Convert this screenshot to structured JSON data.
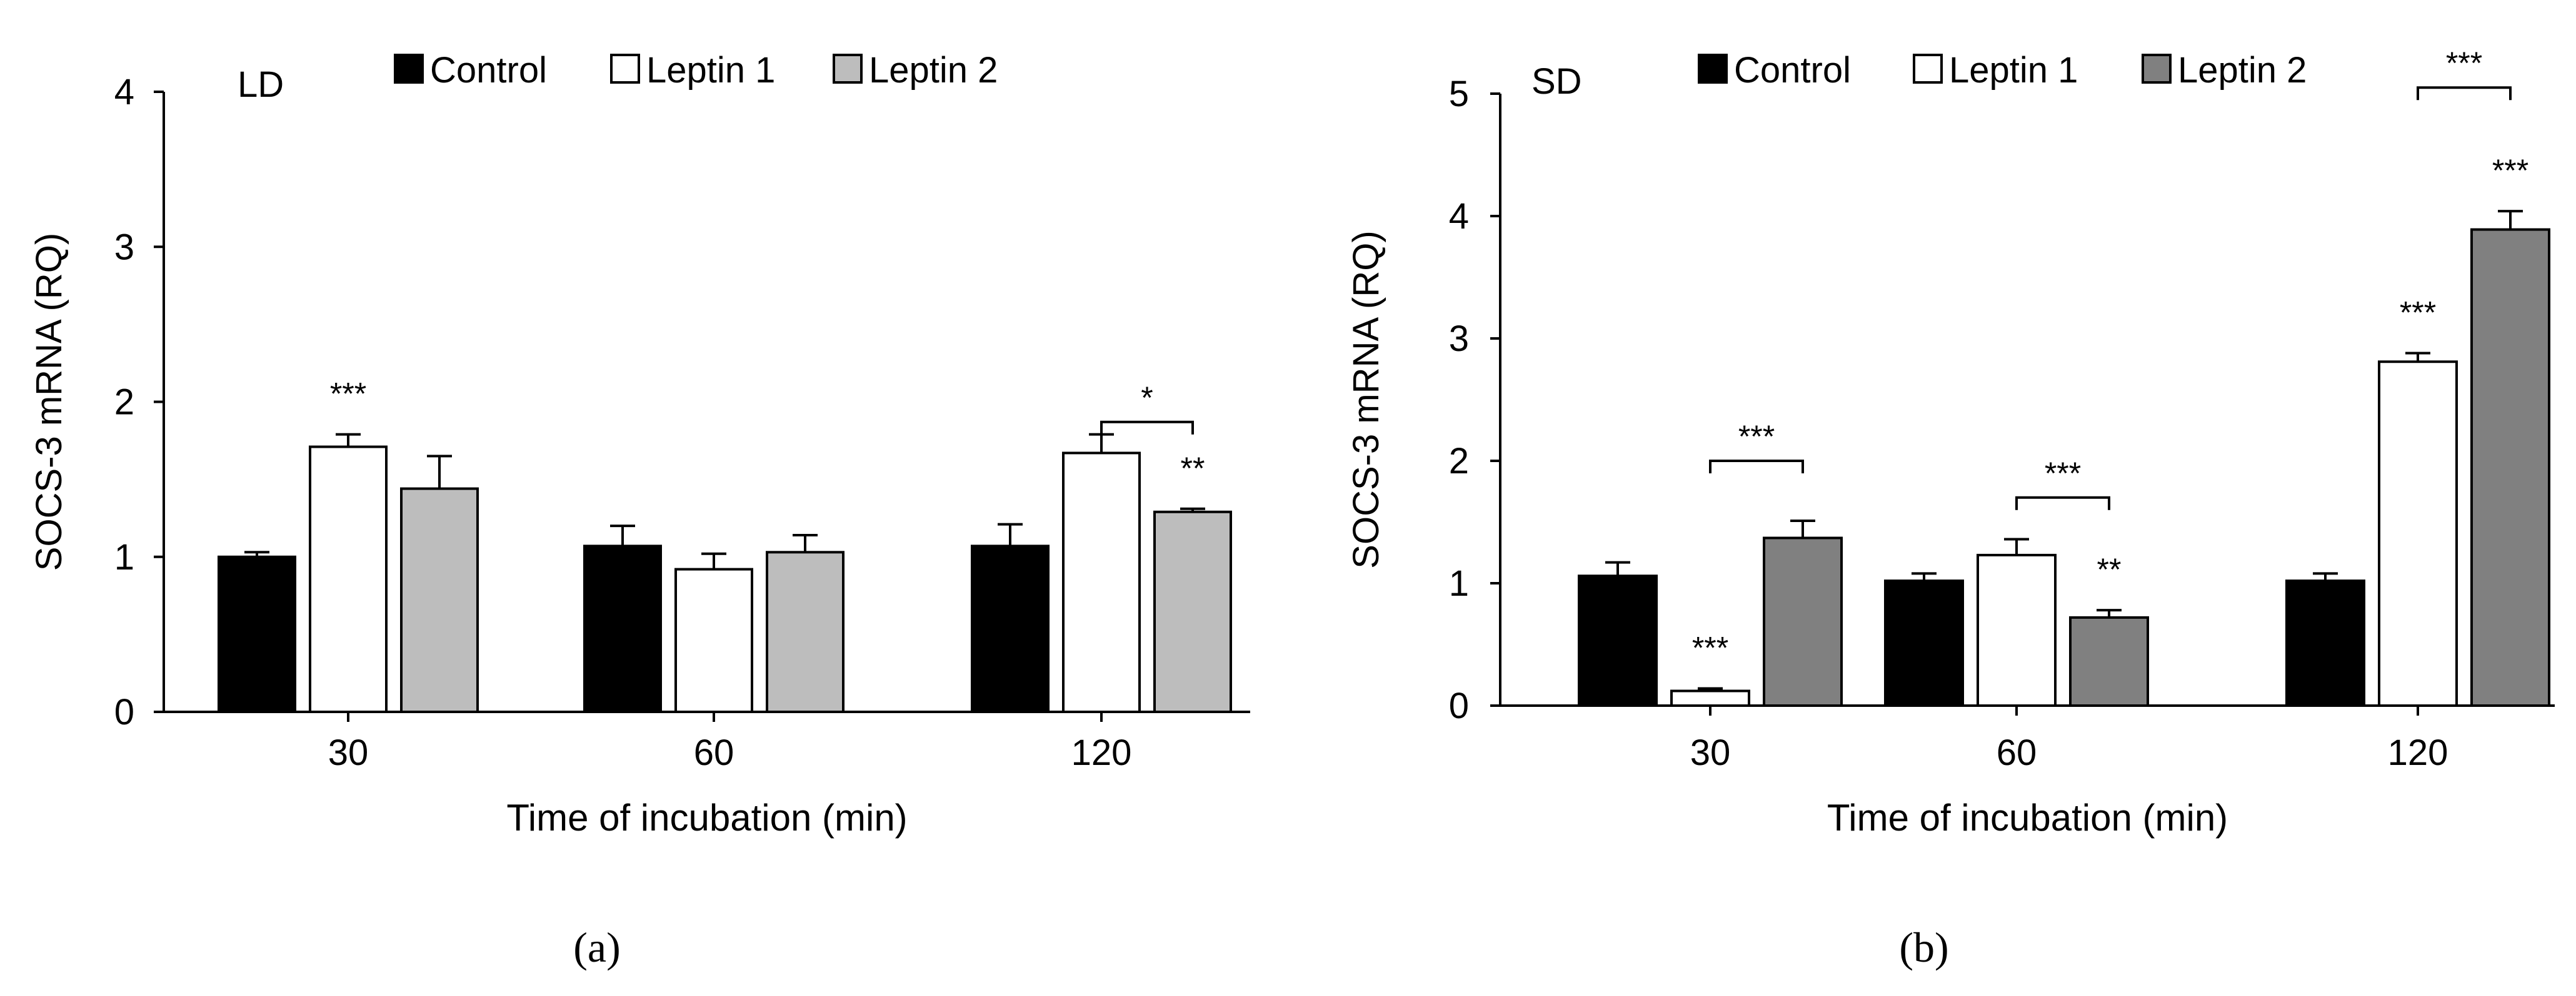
{
  "chart_data": [
    {
      "type": "bar",
      "panel_label": "(a)",
      "corner_label": "LD",
      "xlabel": "Time of incubation (min)",
      "ylabel": "SOCS-3 mRNA  (RQ)",
      "ylim": [
        0,
        4
      ],
      "yticks": [
        "0",
        "1",
        "2",
        "3",
        "4"
      ],
      "categories": [
        "30",
        "60",
        "120"
      ],
      "series": [
        {
          "name": "Control",
          "color": "#000000",
          "values": [
            1.0,
            1.07,
            1.07
          ],
          "errors": [
            0.03,
            0.13,
            0.14
          ]
        },
        {
          "name": "Leptin 1",
          "color": "#ffffff",
          "values": [
            1.71,
            0.92,
            1.67
          ],
          "errors": [
            0.08,
            0.1,
            0.12
          ]
        },
        {
          "name": "Leptin 2",
          "color": "#bdbdbd",
          "values": [
            1.44,
            1.03,
            1.29
          ],
          "errors": [
            0.21,
            0.11,
            0.02
          ]
        }
      ],
      "bar_marks": [
        {
          "series": 1,
          "category": 0,
          "text": "***"
        },
        {
          "series": 2,
          "category": 2,
          "text": "**"
        }
      ],
      "brackets": [
        {
          "category": 2,
          "from_series": 1,
          "to_series": 2,
          "level": 1.87,
          "text": "*"
        }
      ]
    },
    {
      "type": "bar",
      "panel_label": "(b)",
      "corner_label": "SD",
      "xlabel": "Time of incubation (min)",
      "ylabel": "SOCS-3 mRNA  (RQ)",
      "ylim": [
        0,
        5
      ],
      "yticks": [
        "0",
        "1",
        "2",
        "3",
        "4",
        "5"
      ],
      "categories": [
        "30",
        "60",
        "120"
      ],
      "series": [
        {
          "name": "Control",
          "color": "#000000",
          "values": [
            1.06,
            1.02,
            1.02
          ],
          "errors": [
            0.11,
            0.06,
            0.06
          ]
        },
        {
          "name": "Leptin 1",
          "color": "#ffffff",
          "values": [
            0.12,
            1.23,
            2.81
          ],
          "errors": [
            0.02,
            0.13,
            0.07
          ]
        },
        {
          "name": "Leptin 2",
          "color": "#808080",
          "values": [
            1.37,
            0.72,
            3.89
          ],
          "errors": [
            0.14,
            0.06,
            0.15
          ]
        }
      ],
      "bar_marks": [
        {
          "series": 1,
          "category": 0,
          "text": "***"
        },
        {
          "series": 2,
          "category": 1,
          "text": "**"
        },
        {
          "series": 1,
          "category": 2,
          "text": "***"
        },
        {
          "series": 2,
          "category": 2,
          "text": "***"
        }
      ],
      "brackets": [
        {
          "category": 0,
          "from_series": 1,
          "to_series": 2,
          "level": 2.0,
          "text": "***"
        },
        {
          "category": 1,
          "from_series": 1,
          "to_series": 2,
          "level": 1.7,
          "text": "***"
        },
        {
          "category": 2,
          "from_series": 1,
          "to_series": 2,
          "level": 5.05,
          "text": "***"
        }
      ]
    }
  ]
}
